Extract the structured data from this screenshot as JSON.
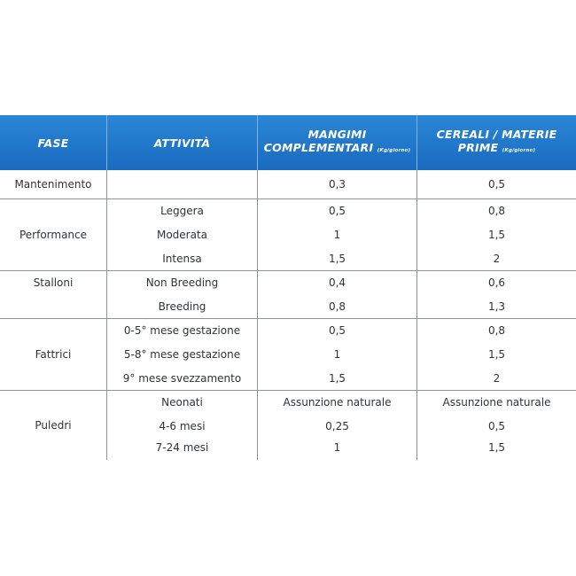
{
  "header": {
    "fase": "FASE",
    "attivita": "ATTIVITÀ",
    "mangimi_line1": "MANGIMI",
    "mangimi_line2": "COMPLEMENTARI",
    "mangimi_unit": "(Kg/giorno)",
    "cereali_line1": "CEREALI / MATERIE",
    "cereali_line2": "PRIME",
    "cereali_unit": "(Kg/giorno)"
  },
  "groups": [
    {
      "fase": "Mantenimento",
      "rows": [
        {
          "attivita": "",
          "mangimi": "0,3",
          "cereali": "0,5"
        }
      ]
    },
    {
      "fase": "Performance",
      "rows": [
        {
          "attivita": "Leggera",
          "mangimi": "0,5",
          "cereali": "0,8"
        },
        {
          "attivita": "Moderata",
          "mangimi": "1",
          "cereali": "1,5"
        },
        {
          "attivita": "Intensa",
          "mangimi": "1,5",
          "cereali": "2"
        }
      ]
    },
    {
      "fase": "Stalloni",
      "rows": [
        {
          "attivita": "Non Breeding",
          "mangimi": "0,4",
          "cereali": "0,6"
        },
        {
          "attivita": "Breeding",
          "mangimi": "0,8",
          "cereali": "1,3"
        }
      ]
    },
    {
      "fase": "Fattrici",
      "rows": [
        {
          "attivita": "0-5° mese gestazione",
          "mangimi": "0,5",
          "cereali": "0,8"
        },
        {
          "attivita": "5-8° mese gestazione",
          "mangimi": "1",
          "cereali": "1,5"
        },
        {
          "attivita": "9° mese svezzamento",
          "mangimi": "1,5",
          "cereali": "2"
        }
      ]
    },
    {
      "fase": "Puledri",
      "rows": [
        {
          "attivita": "Neonati",
          "mangimi": "Assunzione naturale",
          "cereali": "Assunzione naturale"
        },
        {
          "attivita": "4-6 mesi",
          "mangimi": "0,25",
          "cereali": "0,5"
        },
        {
          "attivita": "7-24 mesi",
          "mangimi": "1",
          "cereali": "1,5"
        }
      ]
    }
  ]
}
